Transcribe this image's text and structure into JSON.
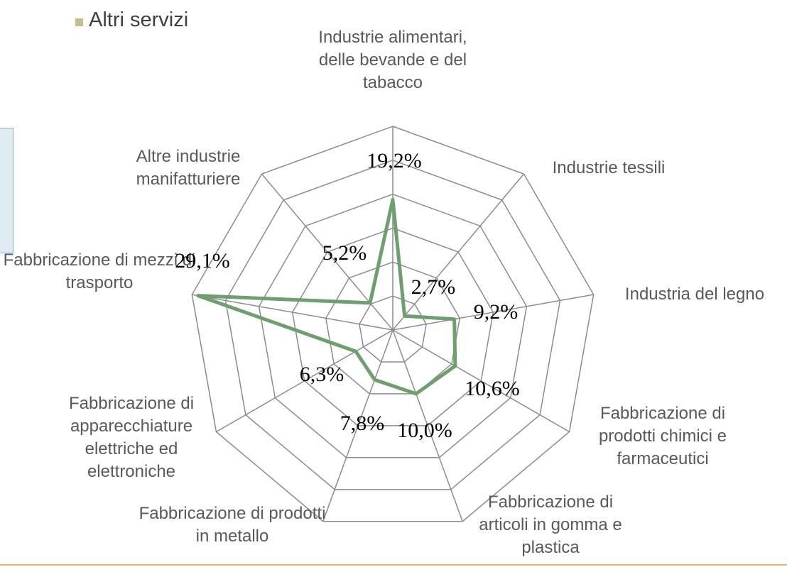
{
  "chart_data": {
    "type": "radar",
    "categories": [
      "Industrie alimentari, delle bevande e del tabacco",
      "Industrie tessili",
      "Industria del legno",
      "Fabbricazione di prodotti chimici e farmaceutici",
      "Fabbricazione di articoli in gomma e plastica",
      "Fabbricazione di prodotti in metallo",
      "Fabbricazione di apparecchiature elettriche ed elettroniche",
      "Fabbricazione di mezzi di trasporto",
      "Altre industrie manifatturiere"
    ],
    "values": [
      19.2,
      2.7,
      9.2,
      10.6,
      10.0,
      7.8,
      6.3,
      29.1,
      5.2
    ],
    "value_labels": [
      "19,2%",
      "2,7%",
      "9,2%",
      "10,6%",
      "10,0%",
      "7,8%",
      "6,3%",
      "29,1%",
      "5,2%"
    ],
    "color": "#6f9f6f",
    "ylim": [
      0,
      30
    ],
    "yticks": [
      0,
      5,
      10,
      15,
      20,
      25,
      30
    ],
    "grid": true
  },
  "other_legend": {
    "label": "Altri servizi",
    "color": "#c8bd8e"
  }
}
